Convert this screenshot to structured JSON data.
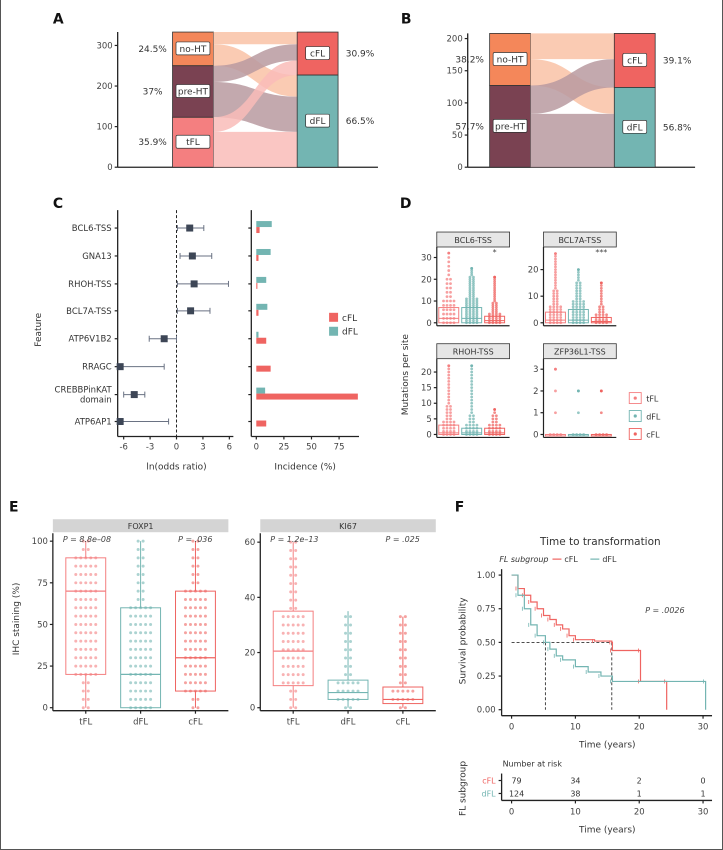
{
  "panel_labels": {
    "A": "A",
    "B": "B",
    "C": "C",
    "D": "D",
    "E": "E",
    "F": "F"
  },
  "colors": {
    "noHT": "#f4875a",
    "preHT": "#7a4252",
    "tFL": "#f47f80",
    "cFL": "#ef6461",
    "dFL": "#73b5b2",
    "forest": "#3d4656"
  },
  "chart_data": [
    {
      "id": "A",
      "type": "sankey",
      "yticks": [
        0,
        100,
        200,
        300
      ],
      "ylim": [
        0,
        333
      ],
      "left_nodes": [
        {
          "name": "no-HT",
          "value": 83,
          "pct": "24.5%",
          "color": "#f4875a",
          "flow_color": "#f9c2a6"
        },
        {
          "name": "pre-HT",
          "value": 127,
          "pct": "37%",
          "color": "#7a4252",
          "flow_color": "#b99aa0"
        },
        {
          "name": "tFL",
          "value": 123,
          "pct": "35.9%",
          "color": "#f47f80",
          "flow_color": "#f9bcb8"
        }
      ],
      "right_nodes": [
        {
          "name": "cFL",
          "value": 106,
          "pct": "30.9%",
          "color": "#ef6461"
        },
        {
          "name": "dFL",
          "value": 227,
          "pct": "66.5%",
          "color": "#73b5b2"
        }
      ],
      "flows": [
        {
          "from": "no-HT",
          "to": "cFL",
          "value": 30
        },
        {
          "from": "no-HT",
          "to": "dFL",
          "value": 53
        },
        {
          "from": "pre-HT",
          "to": "cFL",
          "value": 40
        },
        {
          "from": "pre-HT",
          "to": "dFL",
          "value": 87
        },
        {
          "from": "tFL",
          "to": "cFL",
          "value": 36
        },
        {
          "from": "tFL",
          "to": "dFL",
          "value": 87
        }
      ]
    },
    {
      "id": "B",
      "type": "sankey",
      "yticks": [
        0,
        50,
        100,
        150,
        200
      ],
      "ylim": [
        0,
        208
      ],
      "left_nodes": [
        {
          "name": "no-HT",
          "value": 81,
          "pct": "38.2%",
          "color": "#f4875a",
          "flow_color": "#f9c2a6"
        },
        {
          "name": "pre-HT",
          "value": 127,
          "pct": "57.7%",
          "color": "#7a4252",
          "flow_color": "#b99aa0"
        }
      ],
      "right_nodes": [
        {
          "name": "cFL",
          "value": 84,
          "pct": "39.1%",
          "color": "#ef6461"
        },
        {
          "name": "dFL",
          "value": 124,
          "pct": "56.8%",
          "color": "#73b5b2"
        }
      ],
      "flows": [
        {
          "from": "no-HT",
          "to": "cFL",
          "value": 40
        },
        {
          "from": "no-HT",
          "to": "dFL",
          "value": 41
        },
        {
          "from": "pre-HT",
          "to": "cFL",
          "value": 44
        },
        {
          "from": "pre-HT",
          "to": "dFL",
          "value": 83
        }
      ]
    },
    {
      "id": "C",
      "type": "forest+bar",
      "ylabel": "Feature",
      "features": [
        "BCL6-TSS",
        "GNA13",
        "RHOH-TSS",
        "BCL7A-TSS",
        "ATP6V1B2",
        "RRAGC",
        "CREBBPinKAT domain",
        "ATP6AP1"
      ],
      "feature_lines": [
        [
          "BCL6-TSS"
        ],
        [
          "GNA13"
        ],
        [
          "RHOH-TSS"
        ],
        [
          "BCL7A-TSS"
        ],
        [
          "ATP6V1B2"
        ],
        [
          "RRAGC"
        ],
        [
          "CREBBPinKAT",
          "domain"
        ],
        [
          "ATP6AP1"
        ]
      ],
      "forest": {
        "xlabel": "ln(odds ratio)",
        "xticks": [
          -6,
          -3,
          0,
          3,
          6
        ],
        "xlim": [
          -6.6,
          6.6
        ],
        "estimate": [
          1.5,
          1.8,
          2.0,
          1.6,
          -1.4,
          -6.4,
          -4.8,
          -6.4
        ],
        "lower": [
          0.1,
          0.4,
          0.1,
          0.1,
          -3.1,
          -6.5,
          -6.0,
          -6.5
        ],
        "upper": [
          3.1,
          4.0,
          5.9,
          3.8,
          0.0,
          -1.4,
          -3.6,
          -0.9
        ]
      },
      "incidence": {
        "xlabel": "Incidence (%)",
        "xticks": [
          0,
          25,
          50,
          75
        ],
        "xlim": [
          -3,
          95
        ],
        "series": [
          {
            "name": "cFL",
            "color": "#ef6461",
            "values": [
              3,
              2,
              1,
              2,
              9,
              13,
              92,
              9
            ]
          },
          {
            "name": "dFL",
            "color": "#73b5b2",
            "values": [
              14,
              13,
              9,
              10,
              2,
              0,
              8,
              0
            ]
          }
        ],
        "legend": "right"
      }
    },
    {
      "id": "D",
      "type": "box+beeswarm",
      "ylabel": "Mutations per site",
      "groups": [
        "tFL",
        "dFL",
        "cFL"
      ],
      "facets": [
        {
          "title": "BCL6-TSS",
          "yticks": [
            0,
            10,
            20,
            30
          ],
          "ymax": 33,
          "sig": "*",
          "boxes": [
            {
              "q1": 0,
              "med": 2,
              "q3": 7,
              "max": 32
            },
            {
              "q1": 0,
              "med": 2,
              "q3": 7,
              "max": 25
            },
            {
              "q1": 0,
              "med": 1,
              "q3": 3,
              "max": 21
            }
          ]
        },
        {
          "title": "BCL7A-TSS",
          "yticks": [
            0,
            10,
            20
          ],
          "ymax": 27,
          "sig": "***",
          "boxes": [
            {
              "q1": 0,
              "med": 1,
              "q3": 4,
              "max": 26
            },
            {
              "q1": 0,
              "med": 1,
              "q3": 5,
              "max": 20
            },
            {
              "q1": 0,
              "med": 0.5,
              "q3": 2,
              "max": 15
            }
          ]
        },
        {
          "title": "RHOH-TSS",
          "yticks": [
            0,
            5,
            10,
            15,
            20
          ],
          "ymax": 23,
          "sig": "",
          "boxes": [
            {
              "q1": 0,
              "med": 0.5,
              "q3": 3,
              "max": 22
            },
            {
              "q1": 0,
              "med": 0.5,
              "q3": 2,
              "max": 22
            },
            {
              "q1": 0,
              "med": 0.5,
              "q3": 2,
              "max": 8
            }
          ]
        },
        {
          "title": "ZFP36L1-TSS",
          "yticks": [
            0,
            1,
            2,
            3
          ],
          "ymax": 3.3,
          "sig": "",
          "boxes": [
            {
              "q1": 0,
              "med": 0,
              "q3": 0,
              "max": 3
            },
            {
              "q1": 0,
              "med": 0,
              "q3": 0,
              "max": 2
            },
            {
              "q1": 0,
              "med": 0,
              "q3": 0,
              "max": 2
            }
          ]
        }
      ],
      "legend": [
        {
          "name": "tFL",
          "color": "#f47f80"
        },
        {
          "name": "dFL",
          "color": "#73b5b2"
        },
        {
          "name": "cFL",
          "color": "#ef6461"
        }
      ]
    },
    {
      "id": "E",
      "type": "box+beeswarm",
      "ylabel": "IHC staining (%)",
      "categories": [
        "tFL",
        "dFL",
        "cFL"
      ],
      "facets": [
        {
          "title": "FOXP1",
          "yticks": [
            0,
            25,
            50,
            75,
            100
          ],
          "ylim": [
            0,
            103
          ],
          "pvalues": [
            "P = 8.8e–08",
            "P = .036"
          ],
          "boxes": [
            {
              "min": 0,
              "q1": 20,
              "med": 70,
              "q3": 90,
              "max": 100
            },
            {
              "min": 0,
              "q1": 0,
              "med": 20,
              "q3": 60,
              "max": 100
            },
            {
              "min": 0,
              "q1": 10,
              "med": 30,
              "q3": 70,
              "max": 100
            }
          ]
        },
        {
          "title": "KI67",
          "yticks": [
            0,
            20,
            40,
            60
          ],
          "ylim": [
            0,
            62
          ],
          "pvalues": [
            "P = 1.2e–13",
            "P = .025"
          ],
          "boxes": [
            {
              "min": 0,
              "q1": 8,
              "med": 20.5,
              "q3": 35,
              "max": 60
            },
            {
              "min": 0,
              "q1": 3,
              "med": 5.5,
              "q3": 10,
              "max": 35
            },
            {
              "min": 0,
              "q1": 1.5,
              "med": 3,
              "q3": 7.5,
              "max": 33
            }
          ]
        }
      ]
    },
    {
      "id": "F",
      "type": "line",
      "title": "Time to transformation",
      "legend_title": "FL subgroup",
      "xlabel": "Time (years)",
      "ylabel": "Survival probability",
      "xticks": [
        0,
        10,
        20,
        30
      ],
      "yticks": [
        "0.00",
        "0.25",
        "0.50",
        "0.75",
        "1.00"
      ],
      "xlim": [
        0,
        31
      ],
      "ylim": [
        0,
        1
      ],
      "pvalue": "P = .0026",
      "medians": [
        5.3,
        15.7
      ],
      "series": [
        {
          "name": "cFL",
          "color": "#ef6461",
          "x": [
            0,
            1,
            2,
            3,
            4,
            5,
            6,
            7,
            8,
            9,
            10,
            13,
            15.7,
            15.8,
            20.2,
            20.2,
            24.3,
            24.3
          ],
          "y": [
            1,
            0.9,
            0.85,
            0.8,
            0.75,
            0.7,
            0.67,
            0.63,
            0.6,
            0.55,
            0.52,
            0.51,
            0.5,
            0.44,
            0.44,
            0.21,
            0.21,
            0
          ]
        },
        {
          "name": "dFL",
          "color": "#73b5b2",
          "x": [
            0,
            1,
            2,
            3,
            4,
            5.3,
            6,
            7,
            8,
            10,
            12,
            14,
            15.8,
            30.4,
            30.4
          ],
          "y": [
            1,
            0.85,
            0.75,
            0.63,
            0.55,
            0.5,
            0.45,
            0.4,
            0.37,
            0.32,
            0.28,
            0.25,
            0.21,
            0.21,
            0
          ]
        }
      ],
      "risk_table": {
        "title": "Number at risk",
        "ylabel": "FL subgroup",
        "xlabel": "Time (years)",
        "rows": [
          {
            "name": "cFL",
            "values": [
              "79",
              "34",
              "2",
              "0"
            ]
          },
          {
            "name": "dFL",
            "values": [
              "124",
              "38",
              "1",
              "1"
            ]
          }
        ]
      }
    }
  ]
}
